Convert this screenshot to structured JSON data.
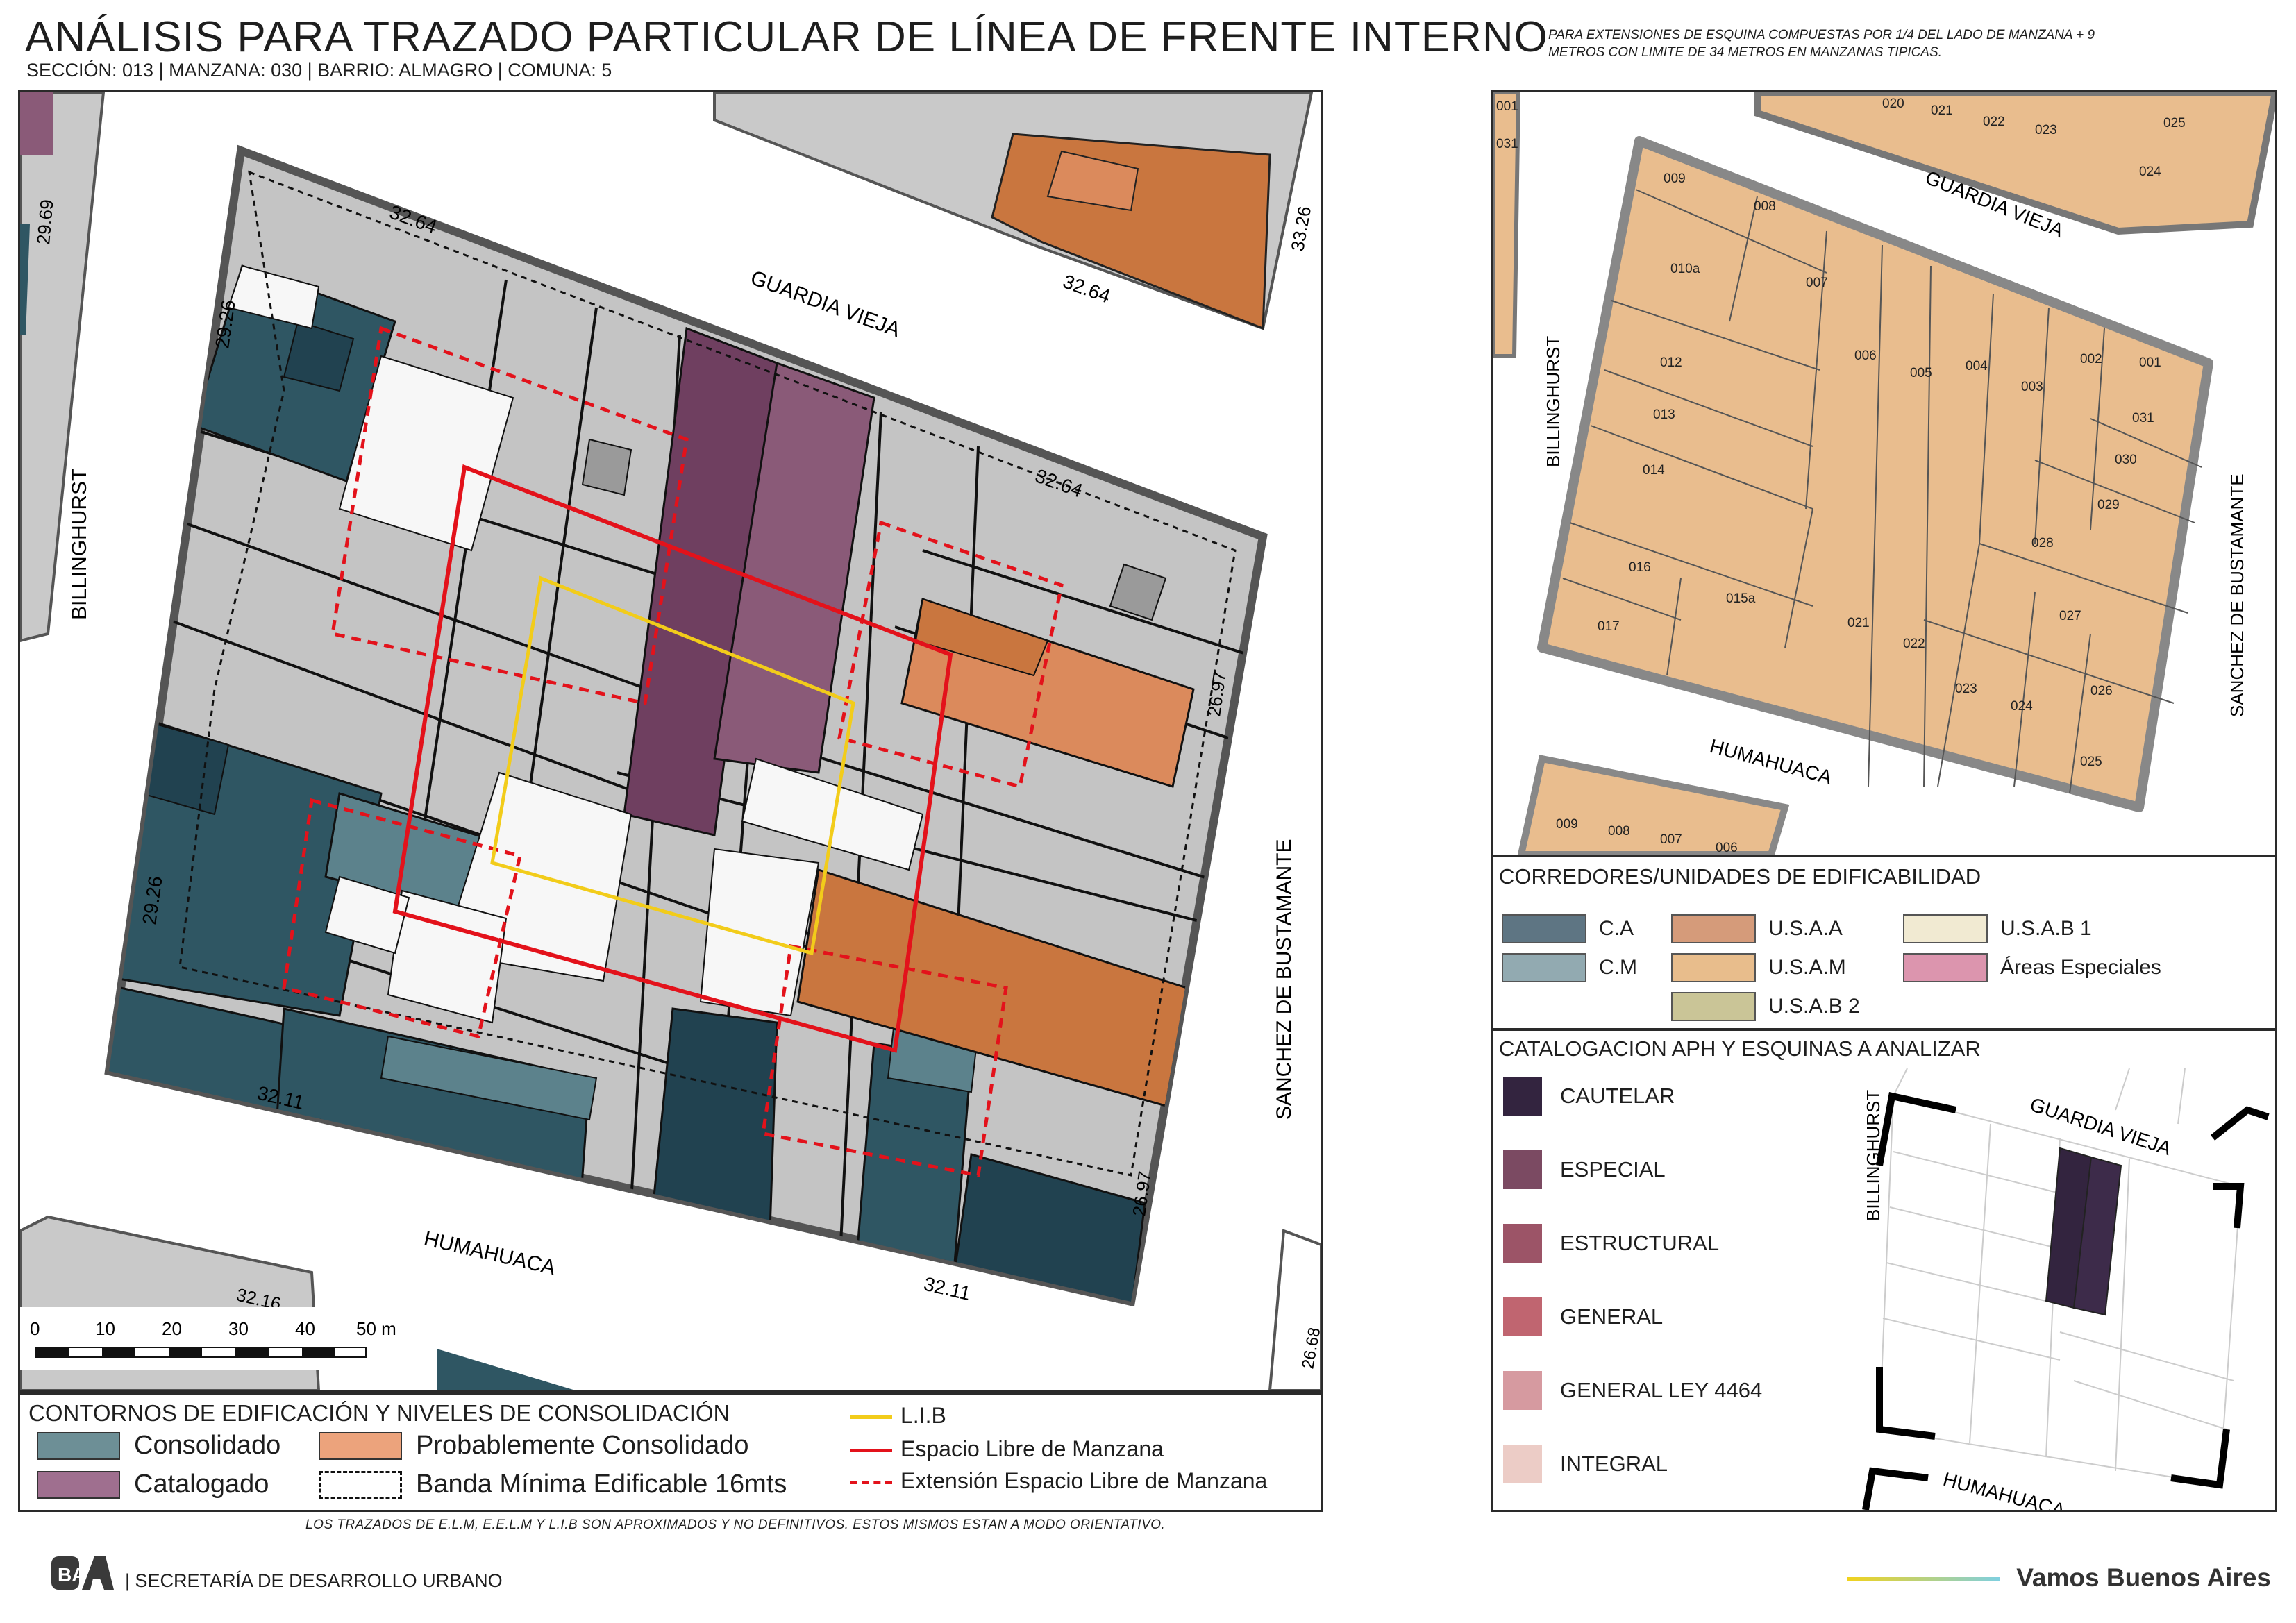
{
  "header": {
    "title": "ANÁLISIS PARA TRAZADO PARTICULAR DE LÍNEA DE FRENTE INTERNO",
    "subtitle": "SECCIÓN: 013 |  MANZANA: 030 | BARRIO: ALMAGRO | COMUNA: 5",
    "note_line1": "PARA EXTENSIONES DE ESQUINA COMPUESTAS POR 1/4 DEL LADO DE MANZANA + 9",
    "note_line2": "METROS CON LIMITE DE 34 METROS EN MANZANAS TIPICAS."
  },
  "map": {
    "streets": {
      "top": "GUARDIA VIEJA",
      "bottom": "HUMAHUACA",
      "left": "BILLINGHURST",
      "right": "SANCHEZ DE BUSTAMANTE"
    },
    "dimensions": {
      "top": "32.64",
      "top_right_block": "32.64",
      "top_right_edge": "33.26",
      "top_mid_right": "32.64",
      "left_top": "29.26",
      "left_bottom": "29.26",
      "left_far": "29.69",
      "right_top": "26.97",
      "right_bottom": "26.97",
      "bottom_left": "32.11",
      "bottom_right": "32.11",
      "bottom_far_left": "32.16",
      "bottom_far_right": "26.68"
    },
    "scale": {
      "ticks": [
        "0",
        "10",
        "20",
        "30",
        "40",
        "50 m"
      ]
    },
    "colors": {
      "consolidado": "#2f5663",
      "consolidado_dark": "#214250",
      "catalogado": "#8a5a78",
      "catalogado_dark": "#6f3f60",
      "prob_consolidado": "#db8a5c",
      "usaa_orange": "#c9763f",
      "gray": "#c4c4c4",
      "gray_dark": "#9a9a9a",
      "white_lot": "#f7f7f7",
      "red": "#e3121b",
      "yellow": "#f2cc1a"
    }
  },
  "legend_bottom": {
    "heading": "CONTORNOS DE EDIFICACIÓN Y NIVELES DE CONSOLIDACIÓN",
    "items": [
      {
        "label": "Consolidado",
        "color": "#6d8f96"
      },
      {
        "label": "Probablemente Consolidado",
        "color": "#eca37c"
      },
      {
        "label": "Catalogado",
        "color": "#9f6f8f"
      },
      {
        "label": "Banda Mínima Edificable 16mts",
        "style": "dotted"
      }
    ],
    "lines": [
      {
        "label": "L.I.B",
        "color": "#f2cc1a",
        "style": "solid"
      },
      {
        "label": "Espacio Libre de Manzana",
        "color": "#e3121b",
        "style": "solid"
      },
      {
        "label": "Extensión Espacio Libre de Manzana",
        "color": "#e3121b",
        "style": "dashed"
      }
    ]
  },
  "parcel_map": {
    "streets": {
      "top": "GUARDIA VIEJA",
      "bottom": "HUMAHUACA",
      "left": "BILLINGHURST",
      "right": "SANCHEZ DE BUSTAMANTE"
    },
    "fill": "#e9bd8e",
    "parcels": [
      "009",
      "008",
      "010a",
      "007",
      "012",
      "006",
      "005",
      "004",
      "003",
      "002",
      "001",
      "031",
      "030",
      "013",
      "014",
      "029",
      "028",
      "016",
      "015a",
      "017",
      "021",
      "022",
      "027",
      "023",
      "024",
      "026",
      "025"
    ],
    "top_strip": [
      "020",
      "021",
      "022",
      "023",
      "025",
      "024"
    ],
    "top_left_edge": [
      "001",
      "031"
    ],
    "bottom_strip": [
      "009",
      "008",
      "007",
      "006"
    ]
  },
  "corredores": {
    "heading": "CORREDORES/UNIDADES DE EDIFICABILIDAD",
    "items": [
      {
        "label": "C.A",
        "color": "#5e7583"
      },
      {
        "label": "U.S.A.A",
        "color": "#d59b7a"
      },
      {
        "label": "U.S.A.B 1",
        "color": "#f1ead2"
      },
      {
        "label": "C.M",
        "color": "#92aab1"
      },
      {
        "label": "U.S.A.M",
        "color": "#e8bd8c"
      },
      {
        "label": "Áreas Especiales",
        "color": "#dc95ae"
      },
      {
        "label": "U.S.A.B 2",
        "color": "#cac597"
      }
    ]
  },
  "catalogacion": {
    "heading": "CATALOGACION APH Y ESQUINAS A ANALIZAR",
    "items": [
      {
        "label": "CAUTELAR",
        "color": "#33243f"
      },
      {
        "label": "ESPECIAL",
        "color": "#7b4a62"
      },
      {
        "label": "ESTRUCTURAL",
        "color": "#9c5467"
      },
      {
        "label": "GENERAL",
        "color": "#c06570"
      },
      {
        "label": "GENERAL LEY 4464",
        "color": "#d69aa0"
      },
      {
        "label": "INTEGRAL",
        "color": "#ecccc6"
      }
    ],
    "mini_map": {
      "top": "GUARDIA VIEJA",
      "left": "BILLINGHURST",
      "bottom": "HUMAHUACA"
    }
  },
  "footer": {
    "disclaimer": "LOS TRAZADOS DE E.L.M, E.E.L.M Y L.I.B SON APROXIMADOS Y NO DEFINITIVOS. ESTOS MISMOS ESTAN A MODO ORIENTATIVO.",
    "logo": "BA",
    "secretaria": "| SECRETARÍA DE DESARROLLO URBANO",
    "brand": "Vamos Buenos Aires"
  }
}
